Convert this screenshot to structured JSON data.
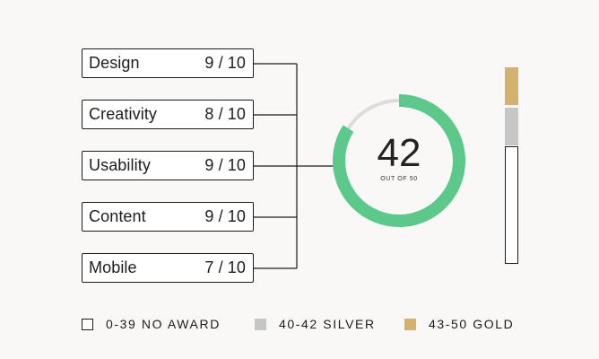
{
  "categories": [
    {
      "label": "Design",
      "score": "9 / 10"
    },
    {
      "label": "Creativity",
      "score": "8 / 10"
    },
    {
      "label": "Usability",
      "score": "9 / 10"
    },
    {
      "label": "Content",
      "score": "9 / 10"
    },
    {
      "label": "Mobile",
      "score": "7 / 10"
    }
  ],
  "total": {
    "value": "42",
    "caption": "OUT OF 50",
    "fraction": 0.84
  },
  "award_bands": [
    {
      "label": "0-39 NO AWARD",
      "range": [
        0,
        39
      ],
      "color": "#ffffff"
    },
    {
      "label": "40-42 SILVER",
      "range": [
        40,
        42
      ],
      "color": "#c6c6c6"
    },
    {
      "label": "43-50 GOLD",
      "range": [
        43,
        50
      ],
      "color": "#d4b16e"
    }
  ],
  "colors": {
    "gauge_fill": "#5cc98a",
    "gauge_track": "#dcdcdc",
    "ink": "#1c1c1c"
  }
}
